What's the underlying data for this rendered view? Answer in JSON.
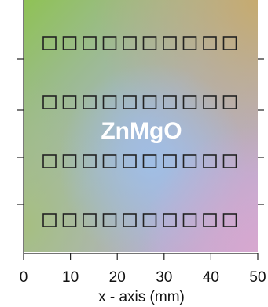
{
  "chart_data": {
    "type": "sample-map",
    "xlabel": "x - axis (mm)",
    "annotation": "ZnMgO",
    "xlim": [
      0,
      50
    ],
    "xticks": [
      0,
      10,
      20,
      30,
      40,
      50
    ]
  }
}
